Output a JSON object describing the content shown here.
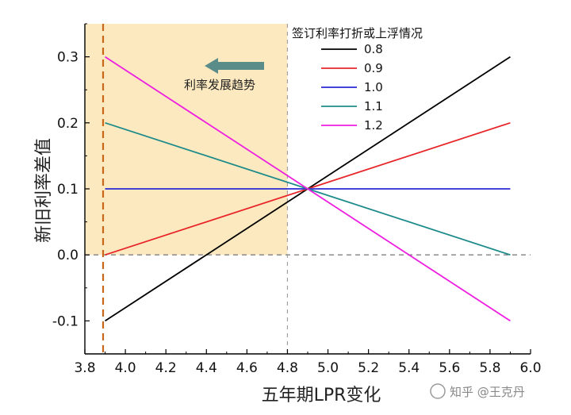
{
  "chart_data": {
    "type": "line",
    "xlabel": "五年期LPR变化",
    "ylabel": "新旧利率差值",
    "xlim": [
      3.8,
      6.0
    ],
    "ylim": [
      -0.15,
      0.35
    ],
    "x_ticks": [
      3.8,
      4.0,
      4.2,
      4.4,
      4.6,
      4.8,
      5.0,
      5.2,
      5.4,
      5.6,
      5.8,
      6.0
    ],
    "x_tick_labels": [
      "3.8",
      "4.0",
      "4.2",
      "4.4",
      "4.6",
      "4.8",
      "5.0",
      "5.2",
      "5.4",
      "5.6",
      "5.8",
      "6.0"
    ],
    "y_ticks": [
      -0.1,
      0.0,
      0.1,
      0.2,
      0.3
    ],
    "y_tick_labels": [
      "-0.1",
      "0.0",
      "0.1",
      "0.2",
      "0.3"
    ],
    "x": [
      3.9,
      4.9,
      5.9
    ],
    "series": [
      {
        "name": "0.8",
        "color": "#000000",
        "values": [
          -0.1,
          0.1,
          0.3
        ]
      },
      {
        "name": "0.9",
        "color": "#e8262a",
        "values": [
          0.0,
          0.1,
          0.2
        ]
      },
      {
        "name": "1.0",
        "color": "#2a2ad6",
        "values": [
          0.1,
          0.1,
          0.1
        ]
      },
      {
        "name": "1.1",
        "color": "#1e8b8b",
        "values": [
          0.2,
          0.1,
          0.0
        ]
      },
      {
        "name": "1.2",
        "color": "#ee1ee0",
        "values": [
          0.3,
          0.1,
          -0.1
        ]
      }
    ],
    "legend_title": "签订利率打折或上浮情况",
    "legend_placement": "top-right",
    "shaded_region": {
      "x_from": 3.8,
      "x_to": 4.8,
      "color": "#fde9bf"
    },
    "reference_lines": [
      {
        "axis": "y",
        "value": 0.0,
        "style": "dashed",
        "color": "#808080"
      },
      {
        "axis": "x",
        "value": 4.8,
        "style": "dashed",
        "color": "#a0a0a0"
      },
      {
        "axis": "x",
        "value": 3.89,
        "style": "dashed",
        "color": "#c8661a"
      }
    ],
    "annotation": {
      "text": "利率发展趋势",
      "arrow": "left",
      "arrow_color": "#5a8c8a"
    },
    "grid": false
  },
  "watermark": "知乎 @王克丹"
}
